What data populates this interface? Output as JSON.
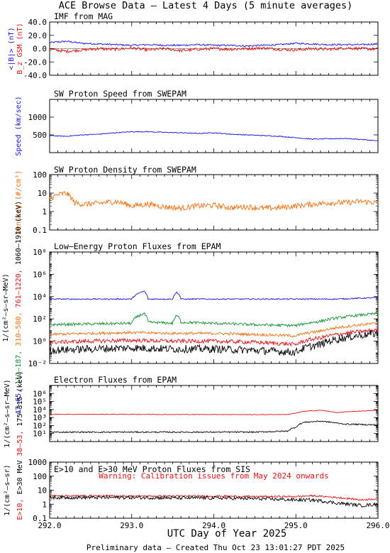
{
  "page": {
    "title": "ACE Browse Data – Latest 4 Days (5 minute averages)",
    "xaxis_label": "UTC Day of Year 2025",
    "footer": "Preliminary data – Created Thu Oct 23 13:01:27 PDT 2025",
    "x_ticks": [
      "292.0",
      "293.0",
      "294.0",
      "295.0",
      "296.0"
    ]
  },
  "colors": {
    "blue": "#1010e0",
    "red": "#e01010",
    "green": "#109030",
    "orange": "#f07010",
    "black": "#000000"
  },
  "chart_data": [
    {
      "id": "imf",
      "type": "line",
      "title": "IMF from MAG",
      "xlim": [
        292.0,
        296.0
      ],
      "ylim": [
        -40,
        40
      ],
      "scale": "linear",
      "y_ticks": [
        "40.0",
        "20.0",
        "0.0",
        "-20.0",
        "-40.0"
      ],
      "ylabel_parts": [
        {
          "text": "<|B|> (nT)",
          "color": "blue"
        },
        {
          "text": "B_z GSM (nT)",
          "color": "red"
        }
      ],
      "series": [
        {
          "name": "<|B|>",
          "color": "blue",
          "x": [
            292.0,
            292.2,
            292.4,
            292.6,
            292.8,
            293.0,
            293.2,
            293.4,
            293.6,
            293.8,
            294.0,
            294.2,
            294.4,
            294.6,
            294.8,
            295.0,
            295.2,
            295.4,
            295.6,
            295.8,
            296.0
          ],
          "y": [
            9,
            11,
            8,
            7,
            6,
            5,
            6,
            5,
            5,
            6,
            5,
            5,
            4,
            5,
            6,
            8,
            7,
            6,
            6,
            6,
            7
          ]
        },
        {
          "name": "Bz GSM",
          "color": "red",
          "x": [
            292.0,
            292.2,
            292.4,
            292.6,
            292.8,
            293.0,
            293.2,
            293.4,
            293.6,
            293.8,
            294.0,
            294.2,
            294.4,
            294.6,
            294.8,
            295.0,
            295.2,
            295.4,
            295.6,
            295.8,
            296.0
          ],
          "y": [
            -1,
            -4,
            -2,
            0,
            -1,
            1,
            -2,
            0,
            -3,
            -1,
            0,
            -1,
            0,
            1,
            -1,
            -2,
            0,
            -1,
            1,
            0,
            -1
          ]
        }
      ]
    },
    {
      "id": "speed",
      "type": "line",
      "title": "SW Proton Speed from SWEPAM",
      "xlim": [
        292.0,
        296.0
      ],
      "ylim": [
        0,
        1500
      ],
      "scale": "linear",
      "y_ticks": [
        "1000",
        "500"
      ],
      "ylabel_parts": [
        {
          "text": "Speed (km/sec)",
          "color": "blue"
        }
      ],
      "series": [
        {
          "name": "Speed",
          "color": "blue",
          "x": [
            292.0,
            292.2,
            292.4,
            292.6,
            292.8,
            293.0,
            293.2,
            293.4,
            293.6,
            293.8,
            294.0,
            294.2,
            294.4,
            294.6,
            294.8,
            295.0,
            295.2,
            295.4,
            295.6,
            295.8,
            296.0
          ],
          "y": [
            480,
            460,
            500,
            520,
            560,
            590,
            590,
            570,
            560,
            540,
            560,
            520,
            500,
            480,
            460,
            420,
            380,
            390,
            400,
            370,
            330
          ]
        }
      ]
    },
    {
      "id": "density",
      "type": "line",
      "title": "SW Proton Density from SWEPAM",
      "xlim": [
        292.0,
        296.0
      ],
      "ylim": [
        0.1,
        100
      ],
      "scale": "log",
      "y_ticks": [
        "100",
        "10",
        "1",
        "0.1"
      ],
      "ylabel_parts": [
        {
          "text": "Density (#/cm³)",
          "color": "orange"
        }
      ],
      "series": [
        {
          "name": "Density",
          "color": "orange",
          "x": [
            292.0,
            292.1,
            292.2,
            292.3,
            292.4,
            292.6,
            292.8,
            293.0,
            293.2,
            293.4,
            293.6,
            293.8,
            294.0,
            294.2,
            294.4,
            294.6,
            294.8,
            295.0,
            295.2,
            295.4,
            295.6,
            295.8,
            296.0
          ],
          "y": [
            5,
            8,
            10,
            3,
            2.5,
            2.8,
            3.5,
            2,
            2.5,
            1.8,
            1.5,
            2,
            2.2,
            1.6,
            1.8,
            1.5,
            1.6,
            2,
            2.5,
            3,
            3,
            3.5,
            3
          ]
        }
      ]
    },
    {
      "id": "epam-proton",
      "type": "line",
      "title": "Low–Energy Proton Fluxes from EPAM",
      "xlim": [
        292.0,
        296.0
      ],
      "ylim": [
        0.01,
        100000000
      ],
      "scale": "log",
      "y_ticks": [
        "10⁸",
        "10⁶",
        "10⁴",
        "10²",
        "10⁰",
        "10⁻²"
      ],
      "ylabel_parts": [
        {
          "text": "47–65,",
          "color": "blue"
        },
        {
          "text": "112–187,",
          "color": "green"
        },
        {
          "text": "310–580,",
          "color": "orange"
        },
        {
          "text": "761–1220,",
          "color": "red"
        },
        {
          "text": "1060–1910 (keV)",
          "color": "black"
        },
        {
          "text": "1/(cm²–s–sr–MeV)",
          "color": "black"
        }
      ],
      "series": [
        {
          "name": "47–65",
          "color": "blue",
          "x": [
            292.0,
            292.5,
            293.0,
            293.15,
            293.2,
            293.5,
            293.55,
            293.6,
            294.0,
            294.5,
            295.0,
            295.5,
            296.0
          ],
          "y": [
            6000,
            6000,
            6000,
            30000,
            6000,
            6000,
            25000,
            6000,
            6000,
            6000,
            6000,
            6000,
            8000
          ]
        },
        {
          "name": "112–187",
          "color": "green",
          "x": [
            292.0,
            292.5,
            293.0,
            293.15,
            293.2,
            293.5,
            293.55,
            293.6,
            294.0,
            294.5,
            295.0,
            295.3,
            295.6,
            296.0
          ],
          "y": [
            30,
            35,
            40,
            300,
            50,
            40,
            200,
            50,
            40,
            30,
            25,
            60,
            150,
            300
          ]
        },
        {
          "name": "310–580",
          "color": "orange",
          "x": [
            292.0,
            292.5,
            293.0,
            293.5,
            294.0,
            294.5,
            295.0,
            295.3,
            295.6,
            296.0
          ],
          "y": [
            4,
            5,
            6,
            5,
            5,
            4,
            3,
            8,
            20,
            40
          ]
        },
        {
          "name": "761–1220",
          "color": "red",
          "x": [
            292.0,
            292.5,
            293.0,
            293.5,
            294.0,
            294.5,
            295.0,
            295.3,
            295.6,
            296.0
          ],
          "y": [
            0.8,
            1,
            1.2,
            1,
            1,
            0.8,
            0.5,
            2,
            5,
            10
          ]
        },
        {
          "name": "1060–1910",
          "color": "black",
          "x": [
            292.0,
            292.5,
            293.0,
            293.5,
            294.0,
            294.5,
            295.0,
            295.3,
            295.6,
            296.0
          ],
          "y": [
            0.15,
            0.2,
            0.25,
            0.2,
            0.2,
            0.15,
            0.1,
            0.5,
            2,
            5
          ]
        }
      ]
    },
    {
      "id": "epam-electron",
      "type": "line",
      "title": "Electron Fluxes from EPAM",
      "xlim": [
        292.0,
        296.0
      ],
      "ylim": [
        1,
        10000000
      ],
      "scale": "log",
      "y_ticks": [
        "10⁶",
        "10⁵",
        "10⁴",
        "10³",
        "10²",
        "10¹"
      ],
      "ylabel_parts": [
        {
          "text": "38–53,",
          "color": "red"
        },
        {
          "text": "175–315 (keV)",
          "color": "black"
        },
        {
          "text": "1/(cm²–s–sr–MeV)",
          "color": "black"
        }
      ],
      "series": [
        {
          "name": "38–53",
          "color": "red",
          "x": [
            292.0,
            292.5,
            293.0,
            293.5,
            294.0,
            294.5,
            294.9,
            295.0,
            295.1,
            295.3,
            295.5,
            295.6,
            296.0
          ],
          "y": [
            2500,
            2500,
            2500,
            2400,
            2400,
            2300,
            2400,
            3500,
            6000,
            8000,
            4000,
            5000,
            8000
          ]
        },
        {
          "name": "175–315",
          "color": "black",
          "x": [
            292.0,
            292.5,
            293.0,
            293.5,
            294.0,
            294.5,
            294.9,
            295.0,
            295.1,
            295.3,
            295.5,
            295.6,
            296.0
          ],
          "y": [
            15,
            15,
            15,
            15,
            15,
            15,
            20,
            60,
            250,
            350,
            200,
            150,
            120
          ]
        }
      ]
    },
    {
      "id": "sis",
      "type": "line",
      "title": "E>10 and E>30 MeV Proton Fluxes from SIS",
      "annotation": "Warning: Calibration issues from May 2024 onwards",
      "xlim": [
        292.0,
        296.0
      ],
      "ylim": [
        0.1,
        1000
      ],
      "scale": "log",
      "y_ticks": [
        "1000",
        "100",
        "10",
        "1",
        "0.1"
      ],
      "ylabel_parts": [
        {
          "text": "E>10,",
          "color": "red"
        },
        {
          "text": "E>30 MeV",
          "color": "black"
        },
        {
          "text": "1/(cm²–s–sr)",
          "color": "black"
        }
      ],
      "series": [
        {
          "name": "E>10",
          "color": "red",
          "x": [
            292.0,
            292.5,
            293.0,
            293.5,
            294.0,
            294.5,
            295.0,
            295.2,
            295.5,
            295.8,
            296.0
          ],
          "y": [
            4,
            4,
            3.8,
            3.8,
            3.8,
            3.5,
            3.5,
            4,
            3,
            2,
            2.5
          ]
        },
        {
          "name": "E>30",
          "color": "black",
          "x": [
            292.0,
            292.5,
            293.0,
            293.5,
            294.0,
            294.5,
            295.0,
            295.2,
            295.5,
            295.8,
            296.0
          ],
          "y": [
            3,
            3,
            3,
            2.8,
            2.8,
            2.5,
            2,
            2,
            1.2,
            0.8,
            1
          ]
        }
      ]
    }
  ]
}
